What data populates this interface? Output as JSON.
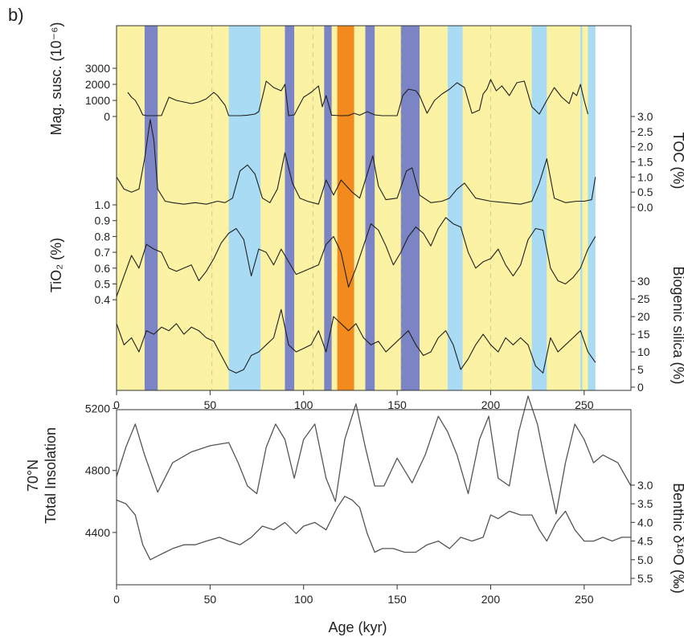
{
  "panel_label": "b)",
  "colors": {
    "yellow": "#FBF3A3",
    "purple": "#7B84C4",
    "lightblue": "#A9DCF4",
    "orange": "#F28A1E",
    "dashed": "#D8C98A",
    "curve_upper": "#1f1f1f",
    "curve_lower": "#555555"
  },
  "chart_data": [
    {
      "type": "line",
      "title": "",
      "xlabel": "",
      "xlim": [
        0,
        275
      ],
      "x_ticks": [
        "0",
        "50",
        "100",
        "150",
        "200",
        "250"
      ],
      "background_bands": [
        {
          "from": 0,
          "to": 256,
          "color": "yellow"
        },
        {
          "from": 15,
          "to": 22,
          "color": "purple"
        },
        {
          "from": 60,
          "to": 77,
          "color": "lightblue"
        },
        {
          "from": 90,
          "to": 95,
          "color": "purple"
        },
        {
          "from": 111,
          "to": 115,
          "color": "purple"
        },
        {
          "from": 118,
          "to": 127,
          "color": "orange"
        },
        {
          "from": 133,
          "to": 138,
          "color": "purple"
        },
        {
          "from": 152,
          "to": 162,
          "color": "purple"
        },
        {
          "from": 177,
          "to": 185,
          "color": "lightblue"
        },
        {
          "from": 222,
          "to": 230,
          "color": "lightblue"
        },
        {
          "from": 248,
          "to": 249,
          "color": "lightblue"
        },
        {
          "from": 252,
          "to": 256,
          "color": "lightblue"
        }
      ],
      "dashed_lines": [
        51,
        105,
        152,
        200
      ],
      "series": [
        {
          "name": "Mag. susc.",
          "axis": "left",
          "label": "Mag. susc. (10⁻⁶)",
          "ylim": [
            0,
            3000
          ],
          "ticks": [
            "0",
            "1000",
            "2000",
            "3000"
          ],
          "x": [
            6,
            8,
            10,
            12,
            14,
            16,
            20,
            24,
            28,
            32,
            36,
            40,
            44,
            48,
            52,
            54,
            56,
            58,
            60,
            62,
            66,
            70,
            74,
            76,
            78,
            80,
            84,
            88,
            90,
            92,
            95,
            100,
            104,
            108,
            110,
            112,
            115,
            120,
            124,
            127,
            130,
            134,
            138,
            142,
            146,
            150,
            153,
            156,
            160,
            162,
            166,
            170,
            174,
            178,
            182,
            186,
            190,
            194,
            196,
            198,
            200,
            203,
            206,
            210,
            214,
            218,
            222,
            226,
            230,
            234,
            238,
            242,
            244,
            246,
            248,
            250,
            252
          ],
          "values": [
            1500,
            1200,
            1000,
            600,
            100,
            50,
            50,
            60,
            1200,
            1000,
            900,
            800,
            900,
            1100,
            1500,
            1300,
            1000,
            700,
            50,
            50,
            50,
            80,
            150,
            300,
            1200,
            2200,
            1800,
            1600,
            2000,
            50,
            100,
            1200,
            1500,
            1900,
            600,
            1300,
            80,
            50,
            60,
            200,
            80,
            300,
            100,
            50,
            50,
            50,
            1300,
            1700,
            1600,
            1300,
            200,
            1000,
            1400,
            1700,
            2100,
            1800,
            200,
            400,
            1400,
            1700,
            2300,
            1600,
            1900,
            1300,
            2100,
            2200,
            600,
            150,
            1000,
            1800,
            1200,
            800,
            1500,
            1300,
            2000,
            1000,
            150
          ]
        },
        {
          "name": "TOC",
          "axis": "right",
          "label": "TOC (%)",
          "ylim": [
            0,
            3.0
          ],
          "ticks": [
            "0.0",
            "0.5",
            "1.0",
            "1.5",
            "2.0",
            "2.5",
            "3.0"
          ],
          "x": [
            0,
            4,
            8,
            12,
            15,
            18,
            20,
            22,
            26,
            30,
            36,
            42,
            48,
            54,
            58,
            62,
            66,
            70,
            74,
            78,
            82,
            86,
            90,
            94,
            98,
            102,
            108,
            112,
            116,
            120,
            126,
            130,
            134,
            137,
            140,
            144,
            150,
            155,
            158,
            162,
            168,
            174,
            178,
            182,
            186,
            192,
            200,
            208,
            216,
            222,
            226,
            230,
            234,
            240,
            246,
            250,
            254,
            256
          ],
          "values": [
            1.0,
            0.6,
            0.5,
            0.6,
            1.6,
            2.9,
            2.2,
            0.6,
            0.2,
            0.15,
            0.1,
            0.15,
            0.1,
            0.2,
            0.15,
            0.3,
            1.2,
            1.4,
            1.1,
            0.3,
            0.15,
            0.6,
            1.8,
            0.8,
            0.3,
            0.2,
            0.1,
            0.9,
            0.4,
            0.9,
            0.5,
            0.3,
            1.1,
            1.7,
            0.7,
            0.25,
            0.3,
            1.2,
            1.3,
            0.4,
            0.15,
            0.2,
            0.3,
            0.6,
            0.8,
            0.3,
            0.2,
            0.15,
            0.1,
            0.2,
            0.8,
            1.6,
            0.3,
            0.15,
            0.2,
            0.2,
            0.25,
            1.0
          ]
        },
        {
          "name": "TiO2",
          "axis": "left",
          "label": "TiO₂ (%)",
          "ylim": [
            0.35,
            1.0
          ],
          "ticks": [
            "0.4",
            "0.5",
            "0.6",
            "0.7",
            "0.8",
            "0.9",
            "1.0"
          ],
          "x": [
            0,
            4,
            8,
            12,
            16,
            20,
            24,
            28,
            32,
            36,
            40,
            44,
            48,
            52,
            56,
            60,
            64,
            68,
            72,
            76,
            80,
            84,
            88,
            92,
            96,
            100,
            104,
            108,
            112,
            116,
            120,
            124,
            128,
            132,
            136,
            140,
            144,
            148,
            152,
            156,
            160,
            164,
            168,
            172,
            176,
            180,
            184,
            188,
            192,
            196,
            200,
            204,
            208,
            212,
            216,
            220,
            224,
            228,
            232,
            236,
            240,
            244,
            248,
            252,
            256
          ],
          "values": [
            0.42,
            0.55,
            0.68,
            0.6,
            0.75,
            0.72,
            0.7,
            0.6,
            0.58,
            0.6,
            0.62,
            0.52,
            0.58,
            0.66,
            0.76,
            0.82,
            0.85,
            0.78,
            0.55,
            0.72,
            0.7,
            0.62,
            0.72,
            0.64,
            0.56,
            0.58,
            0.6,
            0.62,
            0.75,
            0.8,
            0.7,
            0.48,
            0.6,
            0.74,
            0.88,
            0.84,
            0.74,
            0.62,
            0.7,
            0.8,
            0.86,
            0.82,
            0.74,
            0.85,
            0.92,
            0.88,
            0.86,
            0.7,
            0.6,
            0.64,
            0.66,
            0.72,
            0.62,
            0.55,
            0.62,
            0.78,
            0.85,
            0.84,
            0.6,
            0.52,
            0.5,
            0.54,
            0.6,
            0.72,
            0.8
          ]
        },
        {
          "name": "Biogenic silica",
          "axis": "right",
          "label": "Biogenic silica (%)",
          "ylim": [
            0,
            33
          ],
          "ticks": [
            "0",
            "5",
            "10",
            "15",
            "20",
            "25",
            "30"
          ],
          "x": [
            0,
            4,
            8,
            12,
            16,
            20,
            24,
            28,
            32,
            36,
            40,
            44,
            48,
            52,
            56,
            60,
            64,
            68,
            72,
            76,
            80,
            84,
            88,
            92,
            96,
            100,
            104,
            108,
            112,
            116,
            120,
            124,
            128,
            132,
            136,
            140,
            144,
            148,
            152,
            156,
            160,
            164,
            168,
            172,
            176,
            180,
            184,
            188,
            192,
            196,
            200,
            204,
            208,
            212,
            216,
            220,
            224,
            228,
            232,
            236,
            240,
            244,
            248,
            252,
            256
          ],
          "values": [
            18,
            12,
            14,
            10,
            16,
            15,
            17,
            16,
            18,
            15,
            17,
            16,
            14,
            13,
            9,
            5,
            4,
            5,
            9,
            10,
            12,
            14,
            22,
            12,
            10,
            11,
            12,
            16,
            10,
            20,
            18,
            16,
            18,
            14,
            12,
            13,
            10,
            12,
            14,
            16,
            12,
            9,
            10,
            14,
            16,
            12,
            5,
            8,
            12,
            15,
            12,
            10,
            14,
            12,
            14,
            12,
            6,
            4,
            14,
            10,
            12,
            14,
            16,
            10,
            7
          ]
        }
      ]
    },
    {
      "type": "line",
      "title": "",
      "xlabel": "Age (kyr)",
      "xlim": [
        0,
        275
      ],
      "x_ticks": [
        "0",
        "50",
        "100",
        "150",
        "200",
        "250"
      ],
      "series": [
        {
          "name": "Total insolation",
          "axis": "left",
          "label": "70°N\nTotal Insolation",
          "ylim": [
            4000,
            5400
          ],
          "ticks": [
            "4400",
            "4800",
            "5200"
          ],
          "x": [
            0,
            5,
            10,
            15,
            22,
            30,
            40,
            50,
            60,
            65,
            70,
            75,
            80,
            85,
            90,
            95,
            100,
            106,
            112,
            117,
            122,
            128,
            133,
            138,
            143,
            150,
            158,
            165,
            172,
            177,
            182,
            188,
            194,
            199,
            204,
            210,
            215,
            220,
            225,
            230,
            235,
            240,
            245,
            250,
            255,
            260,
            268,
            275
          ],
          "values": [
            4760,
            4950,
            5100,
            4900,
            4660,
            4850,
            4920,
            4960,
            4980,
            4850,
            4700,
            4650,
            4950,
            5100,
            5000,
            4750,
            5000,
            5100,
            4750,
            4600,
            5000,
            5230,
            4950,
            4700,
            4700,
            4880,
            4720,
            4900,
            5150,
            5050,
            4900,
            4650,
            5000,
            5150,
            4750,
            4700,
            5050,
            5280,
            5100,
            4800,
            4520,
            4850,
            5100,
            5000,
            4850,
            4900,
            4850,
            4700
          ]
        },
        {
          "name": "Benthic δ¹⁸O",
          "axis": "right",
          "label": "Benthic δ¹⁸O (‰)",
          "ylim": [
            5.5,
            2.7
          ],
          "ticks": [
            "3.0",
            "3.5",
            "4.0",
            "4.5",
            "5.0",
            "5.5"
          ],
          "x": [
            0,
            5,
            10,
            14,
            18,
            22,
            26,
            30,
            36,
            42,
            48,
            55,
            60,
            66,
            72,
            78,
            84,
            90,
            96,
            100,
            106,
            112,
            118,
            122,
            126,
            130,
            134,
            138,
            142,
            148,
            154,
            160,
            166,
            172,
            178,
            184,
            190,
            196,
            200,
            204,
            210,
            216,
            222,
            226,
            230,
            235,
            240,
            245,
            250,
            255,
            260,
            265,
            270,
            275
          ],
          "values": [
            3.4,
            3.5,
            3.8,
            4.6,
            5.0,
            4.9,
            4.8,
            4.7,
            4.6,
            4.6,
            4.5,
            4.4,
            4.5,
            4.6,
            4.4,
            4.1,
            4.2,
            4.0,
            4.3,
            4.1,
            4.0,
            4.2,
            3.6,
            3.3,
            3.4,
            3.6,
            4.3,
            4.8,
            4.7,
            4.7,
            4.8,
            4.8,
            4.6,
            4.5,
            4.7,
            4.4,
            4.5,
            4.4,
            3.8,
            3.9,
            3.7,
            3.8,
            3.8,
            4.2,
            4.5,
            4.0,
            3.7,
            4.2,
            4.5,
            4.5,
            4.4,
            4.5,
            4.4,
            4.4
          ]
        }
      ]
    }
  ]
}
